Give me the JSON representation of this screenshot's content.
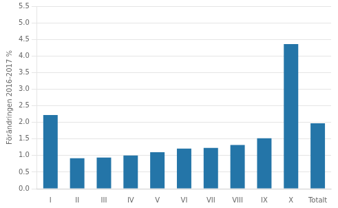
{
  "chart_data": {
    "type": "bar",
    "categories": [
      "I",
      "II",
      "III",
      "IV",
      "V",
      "VI",
      "VII",
      "VIII",
      "IX",
      "X",
      "Totalt"
    ],
    "values": [
      2.22,
      0.92,
      0.94,
      1.0,
      1.1,
      1.21,
      1.23,
      1.32,
      1.52,
      4.36,
      1.97
    ],
    "color": "#2475a8",
    "ylabel": "Förändringen 2016-2017 %",
    "ylim": [
      0,
      5.5
    ],
    "yticks": [
      {
        "value": 0.0,
        "label": "0.0"
      },
      0.5,
      {
        "value": 1.0,
        "label": "1.0"
      },
      1.5,
      {
        "value": 2.0,
        "label": "2.0"
      },
      2.5,
      {
        "value": 3.0,
        "label": "3.0"
      },
      3.5,
      {
        "value": 4.0,
        "label": "4.0"
      },
      4.5,
      {
        "value": 5.0,
        "label": "5.0"
      },
      5.5
    ],
    "grid": true
  }
}
